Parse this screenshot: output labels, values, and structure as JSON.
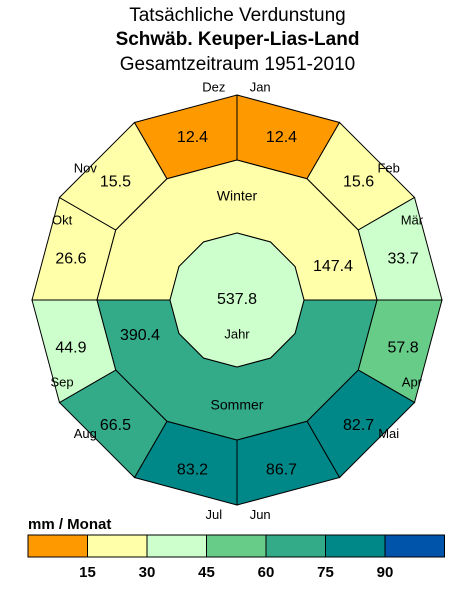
{
  "title": "Tatsächliche Verdunstung",
  "subtitle": "Schwäb. Keuper-Lias-Land",
  "period": "Gesamtzeitraum 1951-2010",
  "legend": {
    "unit": "mm / Monat",
    "ticks": [
      "15",
      "30",
      "45",
      "60",
      "75",
      "90"
    ],
    "colors": [
      "#ff9900",
      "#ffffaa",
      "#ccffcc",
      "#66cc88",
      "#33aa88",
      "#008888",
      "#0055aa"
    ]
  },
  "chart_data": {
    "type": "polar-month-diagram",
    "months": [
      {
        "name": "Jan",
        "value": "12.4",
        "color": "#ff9900"
      },
      {
        "name": "Feb",
        "value": "15.6",
        "color": "#ffffaa"
      },
      {
        "name": "Mär",
        "value": "33.7",
        "color": "#ccffcc"
      },
      {
        "name": "Apr",
        "value": "57.8",
        "color": "#66cc88"
      },
      {
        "name": "Mai",
        "value": "82.7",
        "color": "#008888"
      },
      {
        "name": "Jun",
        "value": "86.7",
        "color": "#008888"
      },
      {
        "name": "Jul",
        "value": "83.2",
        "color": "#008888"
      },
      {
        "name": "Aug",
        "value": "66.5",
        "color": "#33aa88"
      },
      {
        "name": "Sep",
        "value": "44.9",
        "color": "#ccffcc"
      },
      {
        "name": "Okt",
        "value": "26.6",
        "color": "#ffffaa"
      },
      {
        "name": "Nov",
        "value": "15.5",
        "color": "#ffffaa"
      },
      {
        "name": "Dez",
        "value": "12.4",
        "color": "#ff9900"
      }
    ],
    "halfyears": [
      {
        "name": "Winter",
        "value": "147.4",
        "color": "#ffffaa"
      },
      {
        "name": "Sommer",
        "value": "390.4",
        "color": "#33aa88"
      }
    ],
    "year": {
      "name": "Jahr",
      "value": "537.8",
      "color": "#ccffcc"
    }
  }
}
